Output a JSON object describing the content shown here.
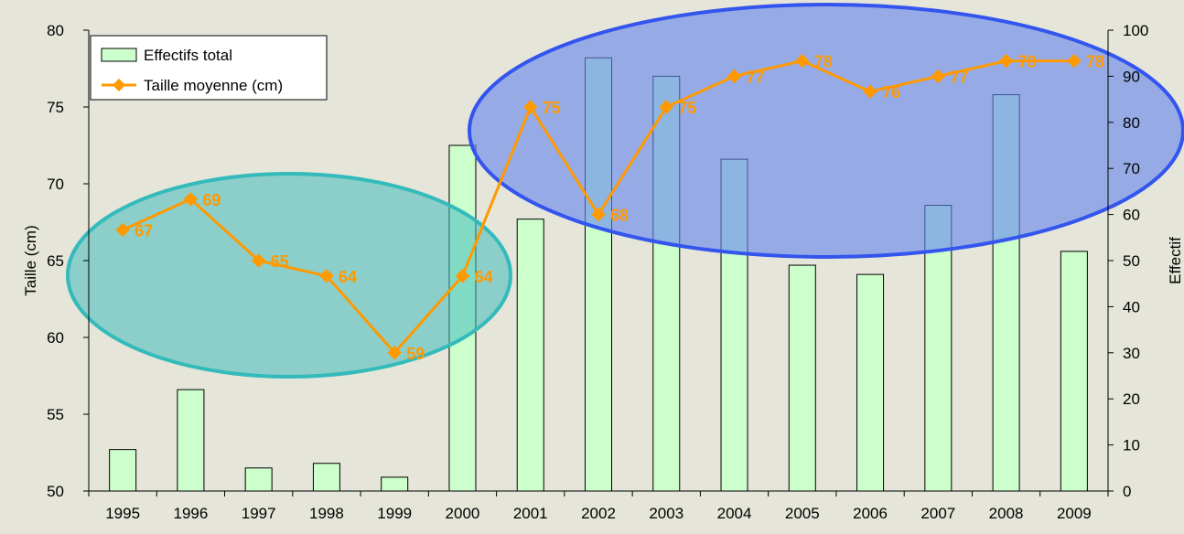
{
  "chart_data": {
    "type": "bar",
    "categories": [
      "1995",
      "1996",
      "1997",
      "1998",
      "1999",
      "2000",
      "2001",
      "2002",
      "2003",
      "2004",
      "2005",
      "2006",
      "2007",
      "2008",
      "2009"
    ],
    "series": [
      {
        "name": "Effectifs total",
        "type": "bar",
        "axis": "right",
        "color": "#ccffcc",
        "values": [
          9,
          22,
          5,
          6,
          3,
          75,
          59,
          94,
          90,
          72,
          49,
          47,
          62,
          86,
          52
        ]
      },
      {
        "name": "Taille moyenne (cm)",
        "type": "line",
        "axis": "left",
        "color": "#ff9900",
        "values": [
          67,
          69,
          65,
          64,
          59,
          64,
          75,
          68,
          75,
          77,
          78,
          76,
          77,
          78,
          78
        ],
        "labels": [
          "67",
          "69",
          "65",
          "64",
          "59",
          "64",
          "75",
          "68",
          "75",
          "77",
          "78",
          "76",
          "77",
          "78",
          "78"
        ]
      }
    ],
    "ylabel_left": "Taille (cm)",
    "ylabel_right": "Effectif",
    "ylim_left": [
      50,
      80
    ],
    "yticks_left": [
      "50",
      "55",
      "60",
      "65",
      "70",
      "75",
      "80"
    ],
    "ylim_right": [
      0,
      100
    ],
    "yticks_right": [
      "0",
      "10",
      "20",
      "30",
      "40",
      "50",
      "60",
      "70",
      "80",
      "90",
      "100"
    ],
    "grid": false,
    "legend_position": "top-left",
    "annotations": [
      {
        "shape": "ellipse",
        "color": "#33bbbb",
        "fill": "#44bbbb",
        "covers": [
          "1995",
          "1999"
        ]
      },
      {
        "shape": "ellipse",
        "color": "#3355ee",
        "fill": "#6688ee",
        "covers": [
          "2001",
          "2009"
        ]
      }
    ]
  }
}
